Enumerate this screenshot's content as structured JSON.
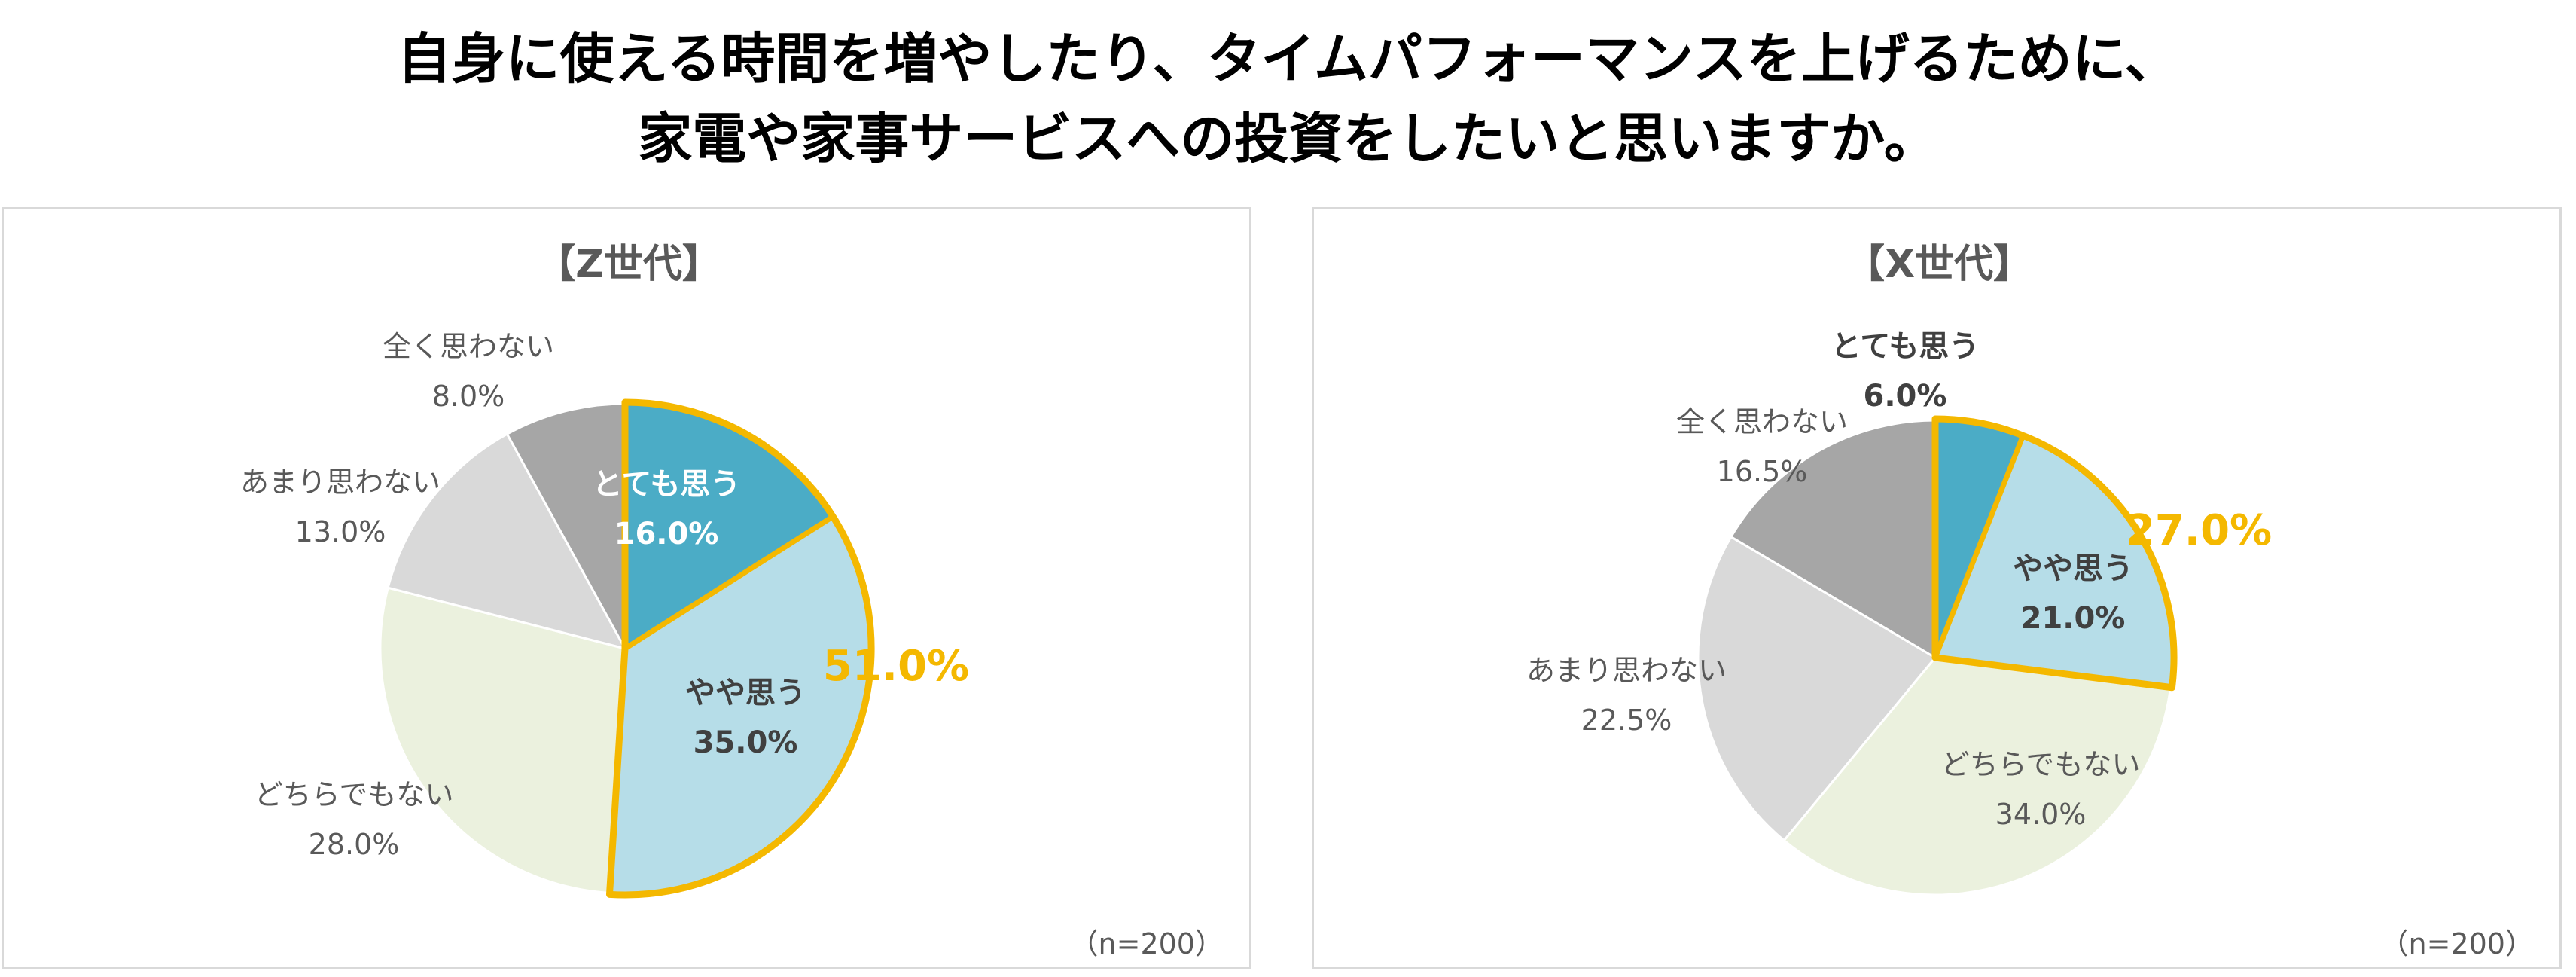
{
  "headline": {
    "line1": "自身に使える時間を増やしたり、タイムパフォーマンスを上げるために、",
    "line2": "家電や家事サービスへの投資をしたいと思いますか。"
  },
  "colors": {
    "very": "#4bacc6",
    "somewhat": "#b6dde8",
    "neither": "#ebf1de",
    "not_much": "#d9d9d9",
    "not_at_all": "#a6a6a6",
    "highlight": "#f4b800",
    "label_dark": "#404040",
    "label_gray": "#595959"
  },
  "chart_data": [
    {
      "type": "pie",
      "title": "【Z世代】",
      "note": "（n=200）",
      "slices": [
        {
          "label": "とても思う",
          "value": 16.0,
          "value_text": "16.0%",
          "color": "#4bacc6",
          "highlight": true
        },
        {
          "label": "やや思う",
          "value": 35.0,
          "value_text": "35.0%",
          "color": "#b6dde8",
          "highlight": true
        },
        {
          "label": "どちらでもない",
          "value": 28.0,
          "value_text": "28.0%",
          "color": "#ebf1de",
          "highlight": false
        },
        {
          "label": "あまり思わない",
          "value": 13.0,
          "value_text": "13.0%",
          "color": "#d9d9d9",
          "highlight": false
        },
        {
          "label": "全く思わない",
          "value": 8.0,
          "value_text": "8.0%",
          "color": "#a6a6a6",
          "highlight": false
        }
      ],
      "combined_label": "51.0%"
    },
    {
      "type": "pie",
      "title": "【X世代】",
      "note": "（n=200）",
      "slices": [
        {
          "label": "とても思う",
          "value": 6.0,
          "value_text": "6.0%",
          "color": "#4bacc6",
          "highlight": true
        },
        {
          "label": "やや思う",
          "value": 21.0,
          "value_text": "21.0%",
          "color": "#b6dde8",
          "highlight": true
        },
        {
          "label": "どちらでもない",
          "value": 34.0,
          "value_text": "34.0%",
          "color": "#ebf1de",
          "highlight": false
        },
        {
          "label": "あまり思わない",
          "value": 22.5,
          "value_text": "22.5%",
          "color": "#d9d9d9",
          "highlight": false
        },
        {
          "label": "全く思わない",
          "value": 16.5,
          "value_text": "16.5%",
          "color": "#a6a6a6",
          "highlight": false
        }
      ],
      "combined_label": "27.0%"
    }
  ]
}
